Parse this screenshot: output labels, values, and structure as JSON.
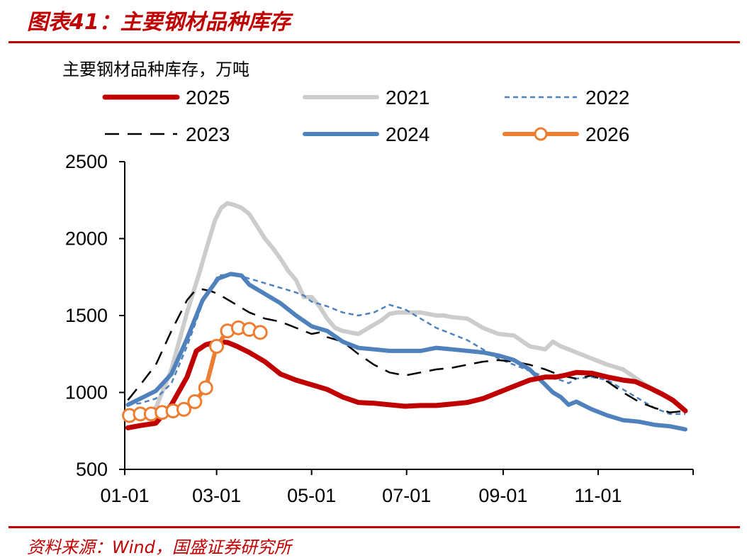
{
  "header": {
    "title": "图表41：主要钢材品种库存"
  },
  "footer": {
    "source": "资料来源：Wind，国盛证券研究所"
  },
  "colors": {
    "accent": "#c00000"
  },
  "chart_data": {
    "type": "line",
    "ylabel": "主要钢材品种库存，万吨",
    "ylim": [
      500,
      2500
    ],
    "yticks": [
      500,
      1000,
      1500,
      2000,
      2500
    ],
    "xlim": [
      0,
      365
    ],
    "xticks": [
      {
        "label": "01-01",
        "day": 0
      },
      {
        "label": "03-01",
        "day": 59
      },
      {
        "label": "05-01",
        "day": 120
      },
      {
        "label": "07-01",
        "day": 181
      },
      {
        "label": "09-01",
        "day": 243
      },
      {
        "label": "11-01",
        "day": 304
      }
    ],
    "series": [
      {
        "name": "2025",
        "color": "#c00000",
        "style": "solid",
        "width": 7,
        "x": [
          2,
          10,
          20,
          30,
          40,
          46,
          52,
          60,
          66,
          72,
          80,
          90,
          100,
          110,
          120,
          130,
          140,
          150,
          160,
          170,
          180,
          190,
          200,
          210,
          220,
          230,
          240,
          250,
          260,
          270,
          277,
          282,
          290,
          300,
          310,
          320,
          328,
          337,
          345,
          352,
          360
        ],
        "y": [
          770,
          785,
          800,
          920,
          1100,
          1270,
          1310,
          1330,
          1325,
          1300,
          1260,
          1200,
          1120,
          1080,
          1050,
          1020,
          970,
          935,
          930,
          920,
          910,
          915,
          915,
          925,
          935,
          960,
          1000,
          1040,
          1080,
          1100,
          1100,
          1110,
          1130,
          1125,
          1100,
          1080,
          1070,
          1030,
          990,
          950,
          880
        ]
      },
      {
        "name": "2021",
        "color": "#cccccc",
        "style": "solid",
        "width": 6,
        "x": [
          2,
          10,
          20,
          30,
          40,
          48,
          52,
          58,
          62,
          66,
          70,
          75,
          80,
          85,
          90,
          95,
          100,
          105,
          110,
          115,
          120,
          125,
          130,
          135,
          140,
          145,
          150,
          155,
          160,
          165,
          170,
          175,
          180,
          185,
          190,
          195,
          200,
          205,
          210,
          220,
          230,
          240,
          250,
          260,
          270,
          275,
          280,
          285,
          290,
          300,
          310,
          320,
          330,
          340,
          350,
          360
        ],
        "y": [
          840,
          850,
          900,
          1150,
          1520,
          1780,
          1920,
          2120,
          2200,
          2230,
          2220,
          2200,
          2160,
          2080,
          2000,
          1940,
          1870,
          1790,
          1730,
          1620,
          1620,
          1560,
          1480,
          1420,
          1400,
          1390,
          1380,
          1410,
          1440,
          1470,
          1510,
          1520,
          1520,
          1520,
          1520,
          1510,
          1500,
          1500,
          1490,
          1480,
          1420,
          1380,
          1370,
          1300,
          1280,
          1330,
          1300,
          1280,
          1260,
          1220,
          1180,
          1150,
          1080,
          1010,
          960,
          880
        ]
      },
      {
        "name": "2022",
        "color": "#4f81bd",
        "style": "dash2",
        "width": 2.5,
        "x": [
          2,
          10,
          20,
          30,
          40,
          50,
          55,
          60,
          70,
          80,
          90,
          100,
          110,
          115,
          120,
          130,
          140,
          150,
          160,
          170,
          180,
          190,
          200,
          210,
          220,
          230,
          240,
          250,
          260,
          270,
          280,
          285,
          290,
          300,
          310,
          320,
          330,
          340,
          350,
          360
        ],
        "y": [
          920,
          930,
          960,
          1060,
          1300,
          1580,
          1680,
          1760,
          1770,
          1740,
          1710,
          1680,
          1650,
          1630,
          1590,
          1560,
          1520,
          1500,
          1520,
          1570,
          1540,
          1480,
          1420,
          1380,
          1340,
          1280,
          1220,
          1180,
          1140,
          1100,
          1080,
          1060,
          1090,
          1100,
          1080,
          1020,
          960,
          900,
          860,
          860
        ]
      },
      {
        "name": "2023",
        "color": "#000000",
        "style": "dash",
        "width": 2.5,
        "x": [
          2,
          10,
          20,
          30,
          40,
          45,
          50,
          55,
          60,
          70,
          80,
          90,
          100,
          110,
          120,
          125,
          130,
          140,
          150,
          160,
          170,
          180,
          190,
          200,
          210,
          220,
          230,
          240,
          250,
          260,
          270,
          280,
          290,
          300,
          310,
          320,
          330,
          340,
          350,
          360
        ],
        "y": [
          950,
          1050,
          1180,
          1400,
          1600,
          1660,
          1670,
          1660,
          1640,
          1580,
          1520,
          1480,
          1460,
          1420,
          1380,
          1390,
          1360,
          1330,
          1250,
          1180,
          1130,
          1110,
          1130,
          1150,
          1160,
          1180,
          1200,
          1210,
          1200,
          1180,
          1150,
          1110,
          1090,
          1110,
          1070,
          1000,
          940,
          900,
          870,
          880
        ]
      },
      {
        "name": "2024",
        "color": "#4f81bd",
        "style": "solid",
        "width": 6,
        "x": [
          2,
          10,
          20,
          30,
          40,
          50,
          60,
          68,
          75,
          80,
          90,
          100,
          110,
          120,
          130,
          140,
          150,
          160,
          170,
          180,
          190,
          200,
          210,
          220,
          230,
          240,
          250,
          260,
          265,
          270,
          275,
          280,
          285,
          290,
          300,
          310,
          320,
          330,
          340,
          350,
          360
        ],
        "y": [
          920,
          960,
          1010,
          1120,
          1350,
          1600,
          1740,
          1770,
          1760,
          1700,
          1640,
          1580,
          1500,
          1430,
          1400,
          1330,
          1290,
          1280,
          1270,
          1270,
          1270,
          1290,
          1280,
          1270,
          1260,
          1240,
          1210,
          1150,
          1100,
          1050,
          1000,
          970,
          920,
          940,
          890,
          850,
          820,
          810,
          790,
          780,
          760
        ]
      },
      {
        "name": "2026",
        "color": "#ed7d31",
        "style": "solid",
        "width": 6,
        "markers": true,
        "x": [
          3,
          10,
          17,
          24,
          31,
          38,
          45,
          52,
          59,
          66,
          73,
          80,
          87
        ],
        "y": [
          850,
          860,
          860,
          870,
          880,
          890,
          940,
          1030,
          1300,
          1400,
          1420,
          1410,
          1390
        ]
      }
    ]
  }
}
